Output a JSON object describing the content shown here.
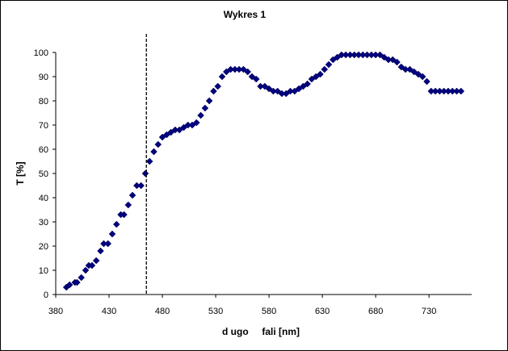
{
  "chart_data": {
    "type": "scatter",
    "title": "Wykres 1",
    "xlabel": "d ugo     fali [nm]",
    "ylabel": "T [%]",
    "xlim": [
      380,
      770
    ],
    "ylim": [
      0,
      100
    ],
    "x_ticks": [
      380,
      430,
      480,
      530,
      580,
      630,
      680,
      730
    ],
    "y_ticks": [
      0,
      10,
      20,
      30,
      40,
      50,
      60,
      70,
      80,
      90,
      100
    ],
    "grid": false,
    "legend": "none",
    "marker": "diamond",
    "marker_color": "#000080",
    "vertical_line": {
      "x": 465,
      "style": "dashed"
    },
    "series": [
      {
        "x": [
          390,
          393,
          398,
          400,
          404,
          408,
          411,
          414,
          418,
          422,
          425,
          429,
          433,
          437,
          441,
          444,
          448,
          452,
          456,
          460,
          464,
          468,
          472,
          476,
          480,
          484,
          488,
          492,
          496,
          500,
          504,
          508,
          512,
          516,
          520,
          524,
          528,
          532,
          536,
          540,
          544,
          548,
          552,
          556,
          560,
          564,
          568,
          572,
          576,
          580,
          584,
          588,
          592,
          596,
          600,
          604,
          608,
          612,
          616,
          620,
          624,
          628,
          632,
          636,
          640,
          644,
          648,
          652,
          656,
          660,
          664,
          668,
          672,
          676,
          680,
          684,
          688,
          692,
          696,
          700,
          704,
          708,
          712,
          716,
          720,
          724,
          728,
          732,
          736,
          740,
          744,
          748,
          752,
          756,
          760
        ],
        "y": [
          3,
          4,
          5,
          5,
          7,
          10,
          12,
          12,
          14,
          18,
          21,
          21,
          25,
          29,
          33,
          33,
          37,
          41,
          45,
          45,
          50,
          55,
          59,
          62,
          65,
          66,
          67,
          68,
          68,
          69,
          70,
          70,
          71,
          74,
          77,
          80,
          84,
          86,
          90,
          92,
          93,
          93,
          93,
          93,
          92,
          90,
          89,
          86,
          86,
          85,
          84,
          84,
          83,
          83,
          84,
          84,
          85,
          86,
          87,
          89,
          90,
          91,
          93,
          95,
          97,
          98,
          99,
          99,
          99,
          99,
          99,
          99,
          99,
          99,
          99,
          99,
          98,
          97,
          97,
          96,
          94,
          93,
          93,
          92,
          91,
          90,
          88,
          84,
          84,
          84,
          84,
          84,
          84,
          84,
          84
        ]
      }
    ]
  }
}
